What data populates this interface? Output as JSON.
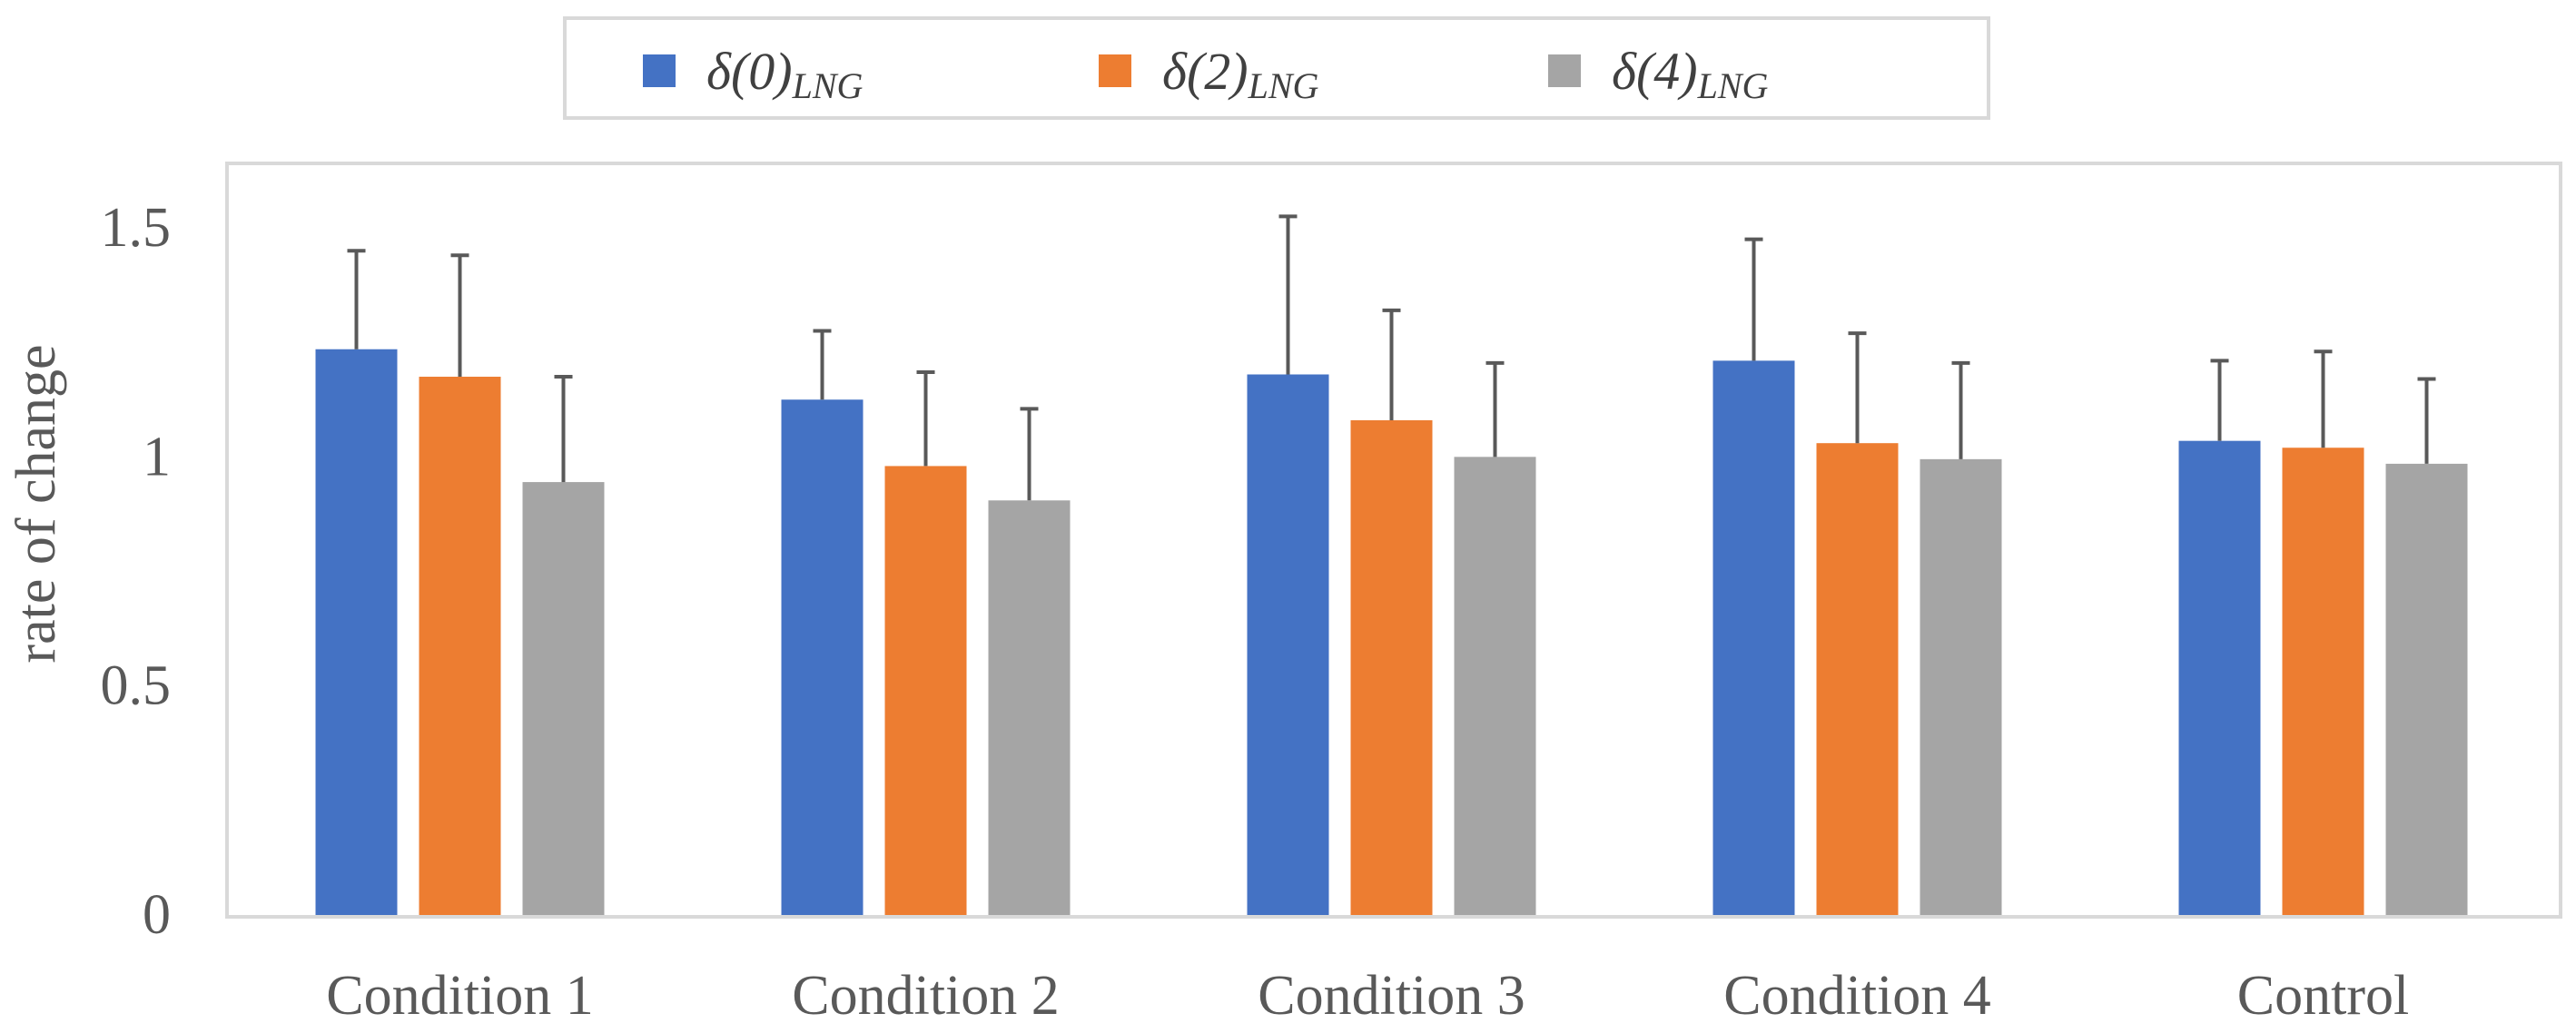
{
  "chart_data": {
    "type": "bar",
    "title": "",
    "xlabel": "",
    "ylabel": "rate of change",
    "ylim": [
      0,
      1.6
    ],
    "yticks": [
      0,
      0.5,
      1,
      1.5
    ],
    "ytick_labels": [
      "0",
      "0.5",
      "1",
      "1.5"
    ],
    "grid": false,
    "legend_position": "top-center",
    "categories": [
      "Condition 1",
      "Condition 2",
      "Condition 3",
      "Condition 4",
      "Control"
    ],
    "series": [
      {
        "name": "δ(0)_LNG",
        "label_main": "δ(0)",
        "label_sub": "LNG",
        "color": "#4472C4",
        "values": [
          1.235,
          1.125,
          1.18,
          1.21,
          1.035
        ],
        "error_upper": [
          1.45,
          1.275,
          1.525,
          1.475,
          1.21
        ]
      },
      {
        "name": "δ(2)_LNG",
        "label_main": "δ(2)",
        "label_sub": "LNG",
        "color": "#ED7D31",
        "values": [
          1.175,
          0.98,
          1.08,
          1.03,
          1.02
        ],
        "error_upper": [
          1.44,
          1.185,
          1.32,
          1.27,
          1.23
        ]
      },
      {
        "name": "δ(4)_LNG",
        "label_main": "δ(4)",
        "label_sub": "LNG",
        "color": "#A5A5A5",
        "values": [
          0.945,
          0.905,
          1.0,
          0.995,
          0.985
        ],
        "error_upper": [
          1.175,
          1.105,
          1.205,
          1.205,
          1.17
        ]
      }
    ],
    "colors": {
      "frame": "#D9D9D9",
      "text": "#595959",
      "error_bar": "#595959"
    }
  }
}
